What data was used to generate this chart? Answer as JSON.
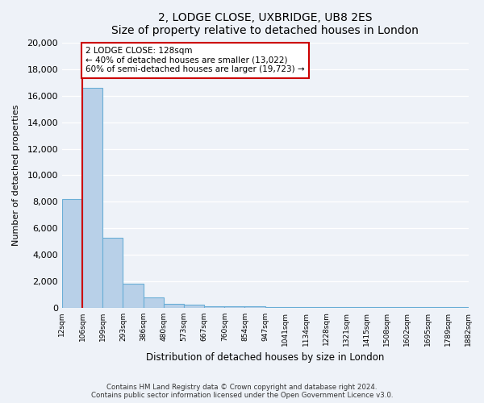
{
  "title": "2, LODGE CLOSE, UXBRIDGE, UB8 2ES",
  "subtitle": "Size of property relative to detached houses in London",
  "xlabel": "Distribution of detached houses by size in London",
  "ylabel": "Number of detached properties",
  "bar_values": [
    8200,
    16600,
    5300,
    1800,
    800,
    300,
    200,
    100,
    100,
    100,
    50,
    50,
    50,
    50,
    50,
    50,
    50,
    50,
    50,
    50
  ],
  "categories": [
    "12sqm",
    "106sqm",
    "199sqm",
    "293sqm",
    "386sqm",
    "480sqm",
    "573sqm",
    "667sqm",
    "760sqm",
    "854sqm",
    "947sqm",
    "1041sqm",
    "1134sqm",
    "1228sqm",
    "1321sqm",
    "1415sqm",
    "1508sqm",
    "1602sqm",
    "1695sqm",
    "1789sqm",
    "1882sqm"
  ],
  "bar_color": "#b8d0e8",
  "bar_edge_color": "#6aaed6",
  "marker_color": "#cc0000",
  "ylim": [
    0,
    20000
  ],
  "yticks": [
    0,
    2000,
    4000,
    6000,
    8000,
    10000,
    12000,
    14000,
    16000,
    18000,
    20000
  ],
  "annotation_title": "2 LODGE CLOSE: 128sqm",
  "annotation_line1": "← 40% of detached houses are smaller (13,022)",
  "annotation_line2": "60% of semi-detached houses are larger (19,723) →",
  "annotation_box_color": "#ffffff",
  "annotation_box_edge": "#cc0000",
  "footer_line1": "Contains HM Land Registry data © Crown copyright and database right 2024.",
  "footer_line2": "Contains public sector information licensed under the Open Government Licence v3.0.",
  "bg_color": "#eef2f8"
}
